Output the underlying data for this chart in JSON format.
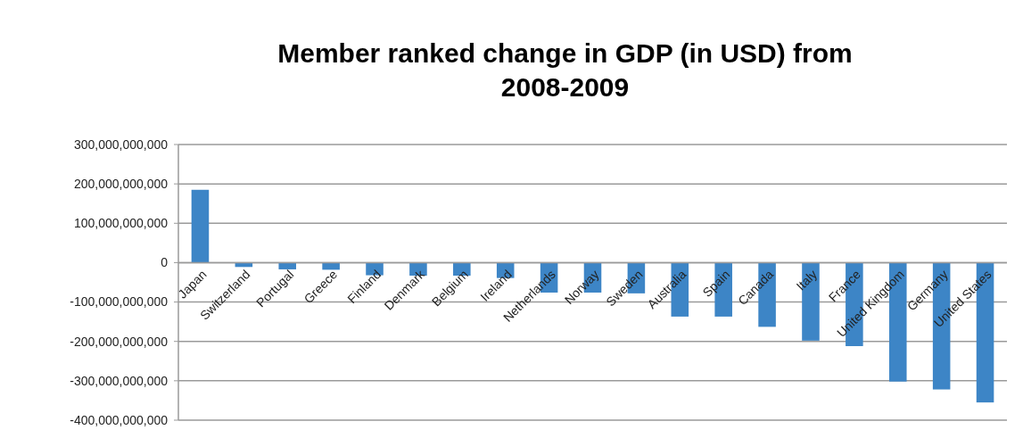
{
  "chart_data": {
    "type": "bar",
    "title": "Member ranked change in GDP (in USD) from 2008-2009",
    "categories": [
      "Japan",
      "Switzerland",
      "Portugal",
      "Greece",
      "Finland",
      "Denmark",
      "Belgium",
      "Ireland",
      "Netherlands",
      "Norway",
      "Sweden",
      "Australia",
      "Spain",
      "Canada",
      "Italy",
      "France",
      "United Kingdom",
      "Germany",
      "United States"
    ],
    "values": [
      185000000000,
      -11000000000,
      -17000000000,
      -18000000000,
      -32000000000,
      -33000000000,
      -33000000000,
      -39000000000,
      -76000000000,
      -76000000000,
      -78000000000,
      -137000000000,
      -137000000000,
      -163000000000,
      -198000000000,
      -212000000000,
      -302000000000,
      -322000000000,
      -355000000000
    ],
    "color": "#3d85c6",
    "ylim": [
      -400000000000,
      300000000000
    ],
    "yticks": [
      {
        "value": -400000000000,
        "label": "-400,000,000,000"
      },
      {
        "value": -300000000000,
        "label": "-300,000,000,000"
      },
      {
        "value": -200000000000,
        "label": "-200,000,000,000"
      },
      {
        "value": -100000000000,
        "label": "-100,000,000,000"
      },
      0,
      {
        "value": 100000000000,
        "label": "100,000,000,000"
      },
      {
        "value": 200000000000,
        "label": "200,000,000,000"
      },
      {
        "value": 300000000000,
        "label": "300,000,000,000"
      }
    ],
    "grid": "y"
  }
}
